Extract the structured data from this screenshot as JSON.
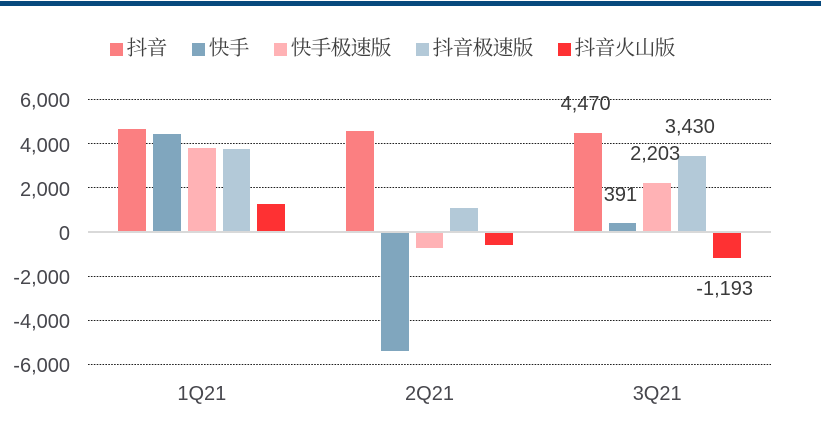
{
  "page": {
    "description": "Grouped bar chart with top accent bar",
    "background_color": "#FFFFFF",
    "top_accent_bar_color": "#07497D"
  },
  "chart_data": {
    "type": "bar",
    "categories": [
      "1Q21",
      "2Q21",
      "3Q21"
    ],
    "series": [
      {
        "name": "抖音",
        "color": "#FB7F81",
        "values": [
          4650,
          4560,
          4470
        ],
        "data_labels": [
          null,
          null,
          "4,470"
        ]
      },
      {
        "name": "快手",
        "color": "#80A6BE",
        "values": [
          4430,
          -5430,
          391
        ],
        "data_labels": [
          null,
          null,
          "391"
        ]
      },
      {
        "name": "快手极速版",
        "color": "#FFB2B5",
        "values": [
          3790,
          -740,
          2203
        ],
        "data_labels": [
          null,
          null,
          "2,203"
        ]
      },
      {
        "name": "抖音极速版",
        "color": "#B3C9D8",
        "values": [
          3715,
          1060,
          3430
        ],
        "data_labels": [
          null,
          null,
          "3,430"
        ]
      },
      {
        "name": "抖音火山版",
        "color": "#FE3133",
        "values": [
          1245,
          -630,
          -1193
        ],
        "data_labels": [
          null,
          null,
          "-1,193"
        ]
      }
    ],
    "ylim": [
      -6000,
      6000
    ],
    "ytick_interval": 2000,
    "ytick_labels": [
      "6,000",
      "4,000",
      "2,000",
      "0",
      "-2,000",
      "-4,000",
      "-6,000"
    ],
    "grid": "horizontal-dotted",
    "legend_position": "top",
    "axis_text_color": "#47474D",
    "data_label_color": "#3A3A3A",
    "zero_line_color": "#D9D9D9",
    "gridline_color": "#1F1F1F"
  }
}
